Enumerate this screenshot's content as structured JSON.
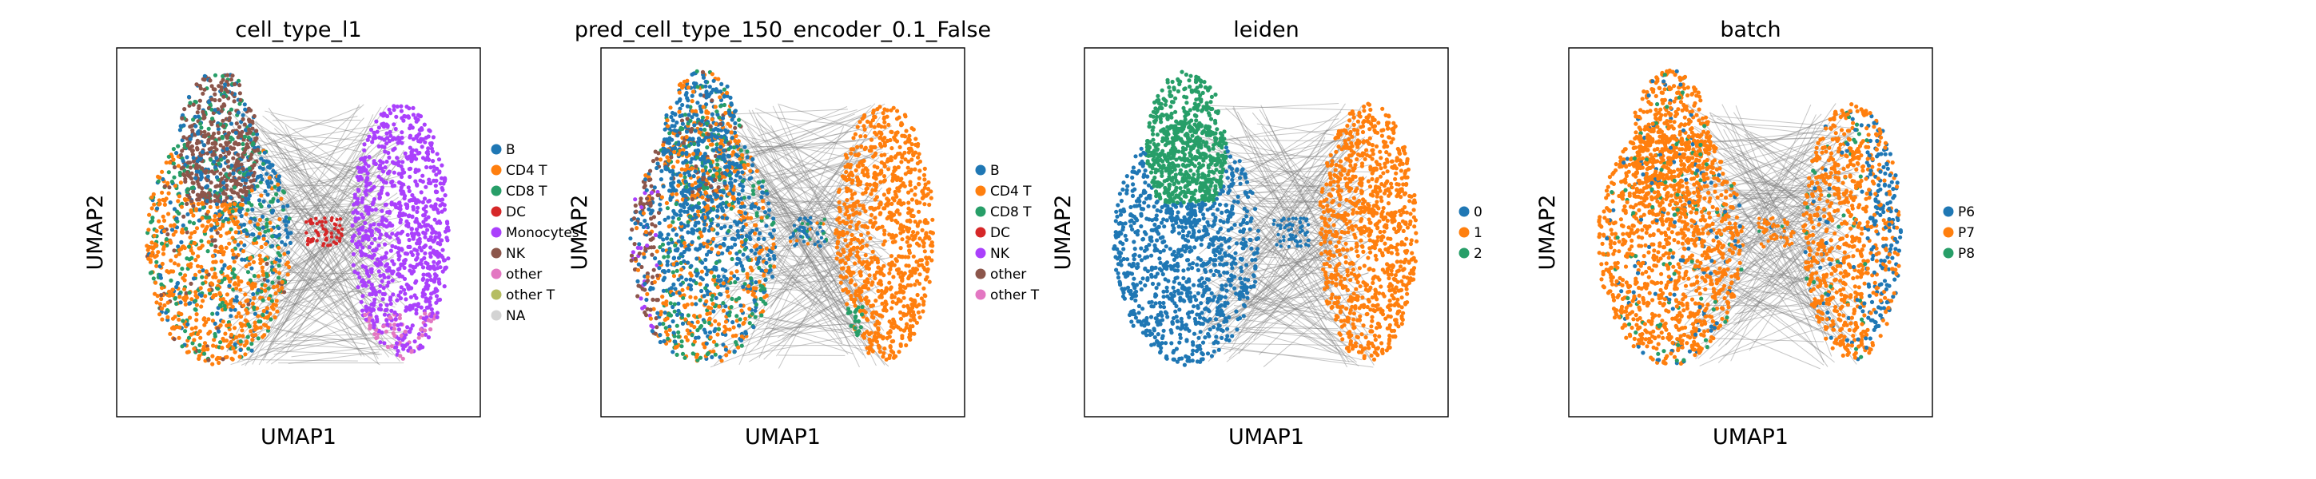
{
  "figure": {
    "grid": false,
    "edge_color": "#808080",
    "frame_color": "#000000"
  },
  "chart_data": [
    {
      "type": "scatter",
      "title": "cell_type_l1",
      "xlabel": "UMAP1",
      "ylabel": "UMAP2",
      "legend_position": "right",
      "legend": [
        {
          "label": "B",
          "color": "#1f77b4"
        },
        {
          "label": "CD4 T",
          "color": "#ff7f0e"
        },
        {
          "label": "CD8 T",
          "color": "#279e68"
        },
        {
          "label": "DC",
          "color": "#d62728"
        },
        {
          "label": "Monocytes",
          "color": "#aa40fc"
        },
        {
          "label": "NK",
          "color": "#8c564b"
        },
        {
          "label": "other",
          "color": "#e377c2"
        },
        {
          "label": "other T",
          "color": "#b5bd61"
        },
        {
          "label": "NA",
          "color": "#d3d3d3"
        }
      ]
    },
    {
      "type": "scatter",
      "title": "pred_cell_type_150_encoder_0.1_False",
      "xlabel": "UMAP1",
      "ylabel": "UMAP2",
      "legend_position": "right",
      "legend": [
        {
          "label": "B",
          "color": "#1f77b4"
        },
        {
          "label": "CD4 T",
          "color": "#ff7f0e"
        },
        {
          "label": "CD8 T",
          "color": "#279e68"
        },
        {
          "label": "DC",
          "color": "#d62728"
        },
        {
          "label": "NK",
          "color": "#aa40fc"
        },
        {
          "label": "other",
          "color": "#8c564b"
        },
        {
          "label": "other T",
          "color": "#e377c2"
        }
      ]
    },
    {
      "type": "scatter",
      "title": "leiden",
      "xlabel": "UMAP1",
      "ylabel": "UMAP2",
      "legend_position": "right",
      "legend": [
        {
          "label": "0",
          "color": "#1f77b4"
        },
        {
          "label": "1",
          "color": "#ff7f0e"
        },
        {
          "label": "2",
          "color": "#279e68"
        }
      ]
    },
    {
      "type": "scatter",
      "title": "batch",
      "xlabel": "UMAP1",
      "ylabel": "UMAP2",
      "legend_position": "right",
      "legend": [
        {
          "label": "P6",
          "color": "#1f77b4"
        },
        {
          "label": "P7",
          "color": "#ff7f0e"
        },
        {
          "label": "P8",
          "color": "#279e68"
        }
      ]
    }
  ]
}
